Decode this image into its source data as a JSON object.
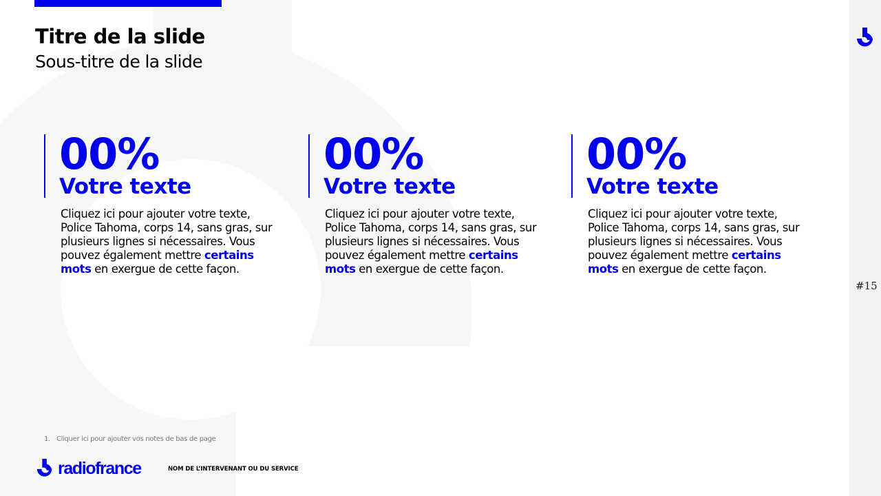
{
  "slide": {
    "title": "Titre de la slide",
    "subtitle": "Sous-titre de la slide",
    "page_number": "#15",
    "accent_color": "#0000ee"
  },
  "columns": [
    {
      "value": "00%",
      "label": "Votre texte",
      "text_before": "Cliquez ici pour ajouter votre texte, Police Tahoma, corps 14, sans gras, sur plusieurs lignes si nécessaires. Vous pouvez également mettre ",
      "highlight": "certains mots",
      "text_after": " en exergue de cette façon."
    },
    {
      "value": "00%",
      "label": "Votre texte",
      "text_before": "Cliquez ici pour ajouter votre texte, Police Tahoma, corps 14, sans gras, sur plusieurs lignes si nécessaires. Vous pouvez également mettre ",
      "highlight": "certains mots",
      "text_after": " en exergue de cette façon."
    },
    {
      "value": "00%",
      "label": "Votre texte",
      "text_before": "Cliquez ici pour ajouter votre texte, Police Tahoma, corps 14, sans gras, sur plusieurs lignes si nécessaires. Vous pouvez également mettre ",
      "highlight": "certains mots",
      "text_after": " en exergue de cette façon."
    }
  ],
  "footer": {
    "note_number": "1.",
    "note_text": "Cliquer ici pour ajouter vos notes de bas de page",
    "brand": "radiofrance",
    "speaker": "NOM DE L’INTERVENANT OU DU SERVICE"
  },
  "icons": {
    "logo": "radiofrance-logo-icon"
  }
}
